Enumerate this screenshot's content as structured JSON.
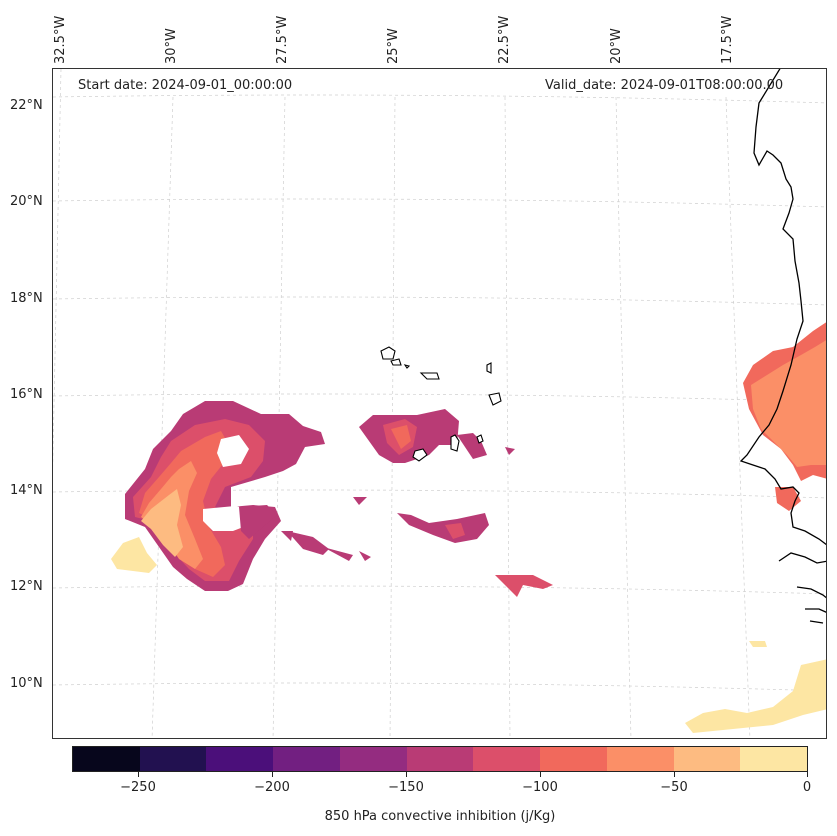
{
  "header": {
    "start_date": "Start date: 2024-09-01_00:00:00",
    "valid_date": "Valid_date: 2024-09-01T08:00:00.00"
  },
  "axes": {
    "lon_labels": [
      "32.5°W",
      "30°W",
      "27.5°W",
      "25°W",
      "22.5°W",
      "20°W",
      "17.5°W"
    ],
    "lat_labels": [
      "22°N",
      "20°N",
      "18°N",
      "16°N",
      "14°N",
      "12°N",
      "10°N"
    ]
  },
  "colorbar": {
    "title": "850 hPa convective inhibition (j/Kg)",
    "tick_labels": [
      "−250",
      "−200",
      "−150",
      "−100",
      "−50",
      "0"
    ],
    "colors": [
      "#07061c",
      "#221150",
      "#4b0f7a",
      "#721f81",
      "#942c80",
      "#b93b75",
      "#dc4f6a",
      "#f1695c",
      "#fb8f67",
      "#fdbb81",
      "#fde6a3"
    ]
  }
}
